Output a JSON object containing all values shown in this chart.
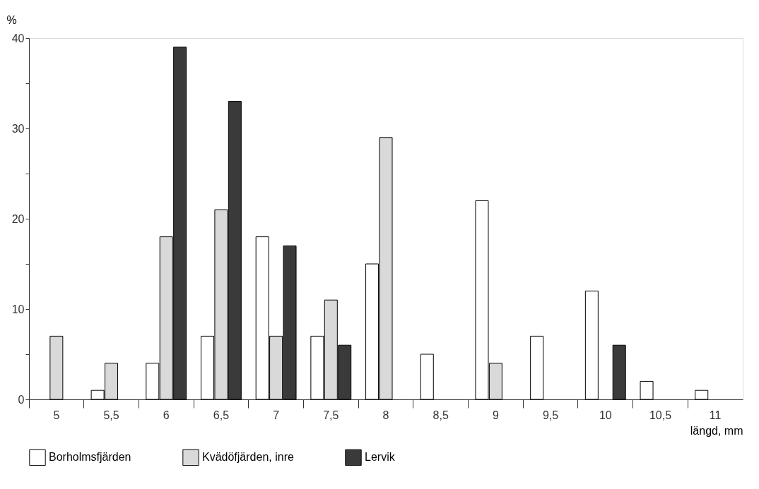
{
  "chart_data": {
    "type": "bar",
    "xlabel": "längd, mm",
    "ylabel": "%",
    "categories": [
      "5",
      "5,5",
      "6",
      "6,5",
      "7",
      "7,5",
      "8",
      "8,5",
      "9",
      "9,5",
      "10",
      "10,5",
      "11"
    ],
    "series": [
      {
        "name": "Borholmsfjärden",
        "color": "#ffffff",
        "values": [
          null,
          1,
          4,
          7,
          18,
          7,
          15,
          5,
          22,
          7,
          12,
          2,
          1
        ]
      },
      {
        "name": "Kvädöfjärden, inre",
        "color": "#d9d9d9",
        "values": [
          7,
          4,
          18,
          21,
          7,
          11,
          29,
          null,
          4,
          null,
          null,
          null,
          null
        ]
      },
      {
        "name": "Lervik",
        "color": "#3a3a3a",
        "values": [
          null,
          null,
          39,
          33,
          17,
          6,
          null,
          null,
          null,
          null,
          6,
          null,
          null
        ]
      }
    ],
    "ylim": [
      0,
      40
    ],
    "yticks": [
      0,
      {
        "value": 5,
        "label": null
      },
      10,
      {
        "value": 15,
        "label": null
      },
      20,
      {
        "value": 25,
        "label": null
      },
      30,
      {
        "value": 35,
        "label": null
      },
      40
    ],
    "grid": false,
    "legend": "bottom"
  }
}
